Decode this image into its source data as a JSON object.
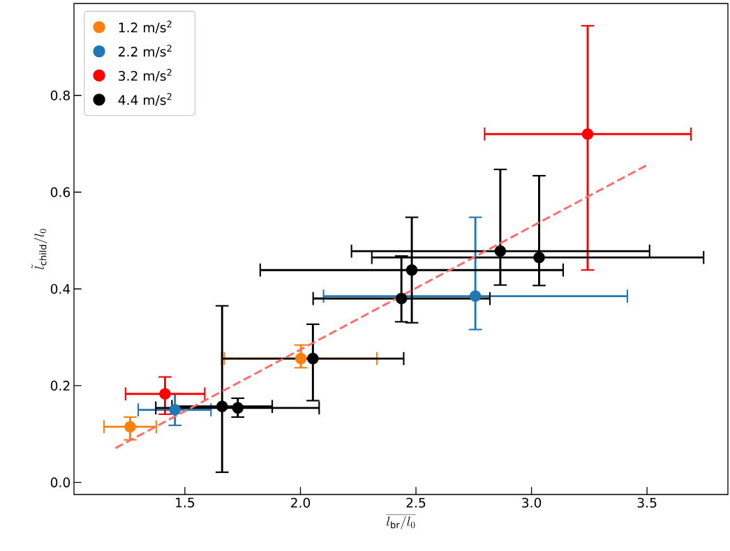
{
  "chart_data": {
    "type": "scatter",
    "xlabel": "\\overline{l_{\\mathrm{br}}/l_0}",
    "ylabel": "\\tilde{l}_{\\mathrm{child}}/l_0",
    "xlim": [
      1.02,
      3.85
    ],
    "ylim": [
      -0.025,
      0.99
    ],
    "xticks": [
      1.5,
      {
        "value": 2,
        "label": "2.0"
      },
      2.5,
      {
        "value": 3,
        "label": "3.0"
      },
      3.5
    ],
    "yticks": [
      {
        "value": 0,
        "label": "0.0"
      },
      0.2,
      0.4,
      0.6,
      0.8
    ],
    "marker": "circle",
    "legend": "top left",
    "series": [
      {
        "name": "1.2 m/s$^{2}$",
        "color": "#ff7f0e",
        "x": [
          1.263,
          2.002
        ],
        "values": [
          0.115,
          0.256
        ],
        "errors": [
          [
            0.088,
            0.135
          ],
          [
            0.237,
            0.284
          ]
        ],
        "xerrors": [
          [
            1.15,
            1.376
          ],
          [
            1.671,
            2.331
          ]
        ]
      },
      {
        "name": "2.2 m/s$^{2}$",
        "color": "#1f77b4",
        "x": [
          1.457,
          2.757
        ],
        "values": [
          0.15,
          0.385
        ],
        "errors": [
          [
            0.118,
            0.183
          ],
          [
            0.316,
            0.548
          ]
        ],
        "xerrors": [
          [
            1.298,
            1.613
          ],
          [
            2.1,
            3.415
          ]
        ]
      },
      {
        "name": "3.2 m/s$^{2}$",
        "color": "#ff0000",
        "x": [
          1.414,
          3.243
        ],
        "values": [
          0.183,
          0.72
        ],
        "errors": [
          [
            0.141,
            0.218
          ],
          [
            0.439,
            0.944
          ]
        ],
        "xerrors": [
          [
            1.243,
            1.586
          ],
          [
            2.797,
            3.69
          ]
        ]
      },
      {
        "name": "4.4 m/s$^{2}$",
        "color": "#000000",
        "x": [
          1.661,
          1.729,
          2.054,
          2.437,
          2.482,
          2.865,
          3.033
        ],
        "values": [
          0.157,
          0.154,
          0.256,
          0.38,
          0.439,
          0.478,
          0.465
        ],
        "errors": [
          [
            0.021,
            0.365
          ],
          [
            0.135,
            0.174
          ],
          [
            0.169,
            0.327
          ],
          [
            0.332,
            0.468
          ],
          [
            0.33,
            0.548
          ],
          [
            0.408,
            0.647
          ],
          [
            0.407,
            0.634
          ]
        ],
        "xerrors": [
          [
            1.444,
            1.878
          ],
          [
            1.374,
            2.081
          ],
          [
            1.66,
            2.447
          ],
          [
            2.055,
            2.82
          ],
          [
            1.826,
            3.137
          ],
          [
            2.221,
            3.511
          ],
          [
            2.309,
            3.745
          ]
        ]
      },
      {
        "type": "line",
        "color": "#ff6b6b",
        "line_style": "dashed",
        "marker": "none",
        "x": [
          1.2,
          3.5
        ],
        "values": [
          0.071,
          0.656
        ]
      }
    ]
  }
}
